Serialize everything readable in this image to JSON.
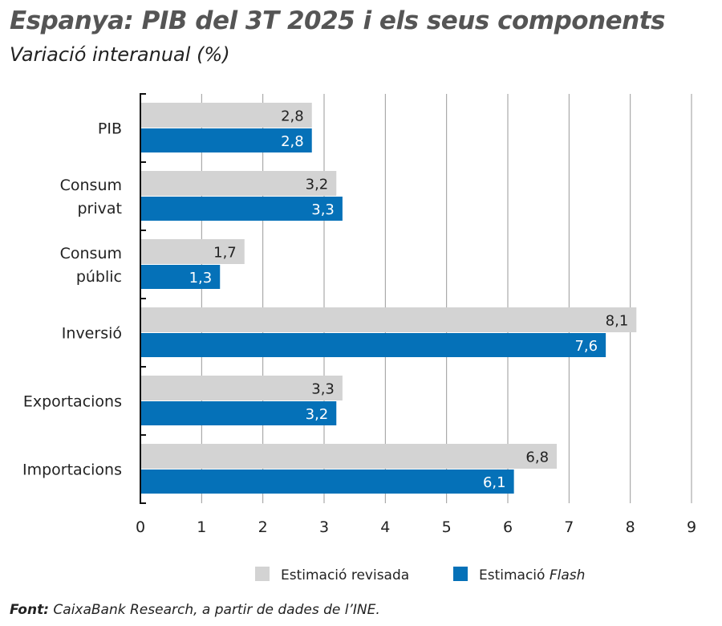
{
  "chart_data": {
    "type": "bar",
    "orientation": "horizontal",
    "title": "Espanya: PIB del 3T 2025 i els seus components",
    "subtitle": "Variació interanual (%)",
    "categories": [
      [
        "PIB"
      ],
      [
        "Consum",
        "privat"
      ],
      [
        "Consum",
        "públic"
      ],
      [
        "Inversió"
      ],
      [
        "Exportacions"
      ],
      [
        "Importacions"
      ]
    ],
    "series": [
      {
        "name": "Estimació revisada",
        "color": "#d3d3d3",
        "values": [
          2.8,
          3.2,
          1.7,
          8.1,
          3.3,
          6.8
        ],
        "labels": [
          "2,8",
          "3,2",
          "1,7",
          "8,1",
          "3,3",
          "6,8"
        ]
      },
      {
        "name": "Estimació ",
        "name_italic": "Flash",
        "color": "#0571b8",
        "values": [
          2.8,
          3.3,
          1.3,
          7.6,
          3.2,
          6.1
        ],
        "labels": [
          "2,8",
          "3,3",
          "1,3",
          "7,6",
          "3,2",
          "6,1"
        ]
      }
    ],
    "xlim": [
      0,
      9
    ],
    "xticks": [
      "0",
      "1",
      "2",
      "3",
      "4",
      "5",
      "6",
      "7",
      "8",
      "9"
    ],
    "grid": true,
    "legend": "bottom"
  },
  "source": {
    "label": "Font:",
    "text": " CaixaBank Research, a partir de dades de l’INE."
  }
}
